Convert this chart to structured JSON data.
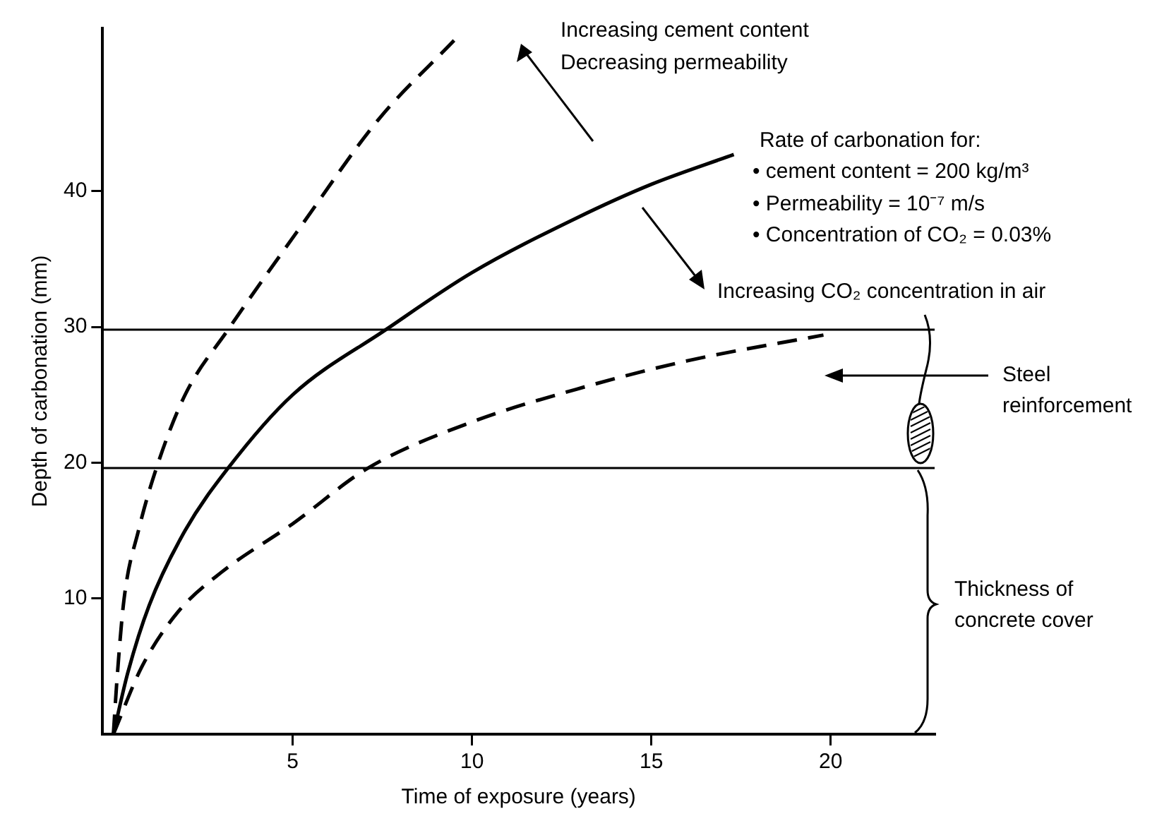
{
  "chart_data": {
    "type": "line",
    "xlabel": "Time of exposure (years)",
    "ylabel": "Depth of carbonation (mm)",
    "xlim": [
      -0.3,
      22.9
    ],
    "ylim": [
      0,
      52
    ],
    "xticks": [
      5,
      10,
      15,
      20
    ],
    "yticks": [
      10,
      20,
      30,
      40
    ],
    "grid": false,
    "legend": false,
    "marker": "none",
    "series": [
      {
        "color": "#000000",
        "line_style": "dashed",
        "x": [
          0,
          0.1,
          0.3,
          0.7,
          1.2,
          2,
          3.2,
          5.2,
          7.4,
          9.5
        ],
        "values": [
          0,
          4,
          10,
          15,
          19.6,
          25,
          29.8,
          37.3,
          45.3,
          51.1
        ]
      },
      {
        "color": "#000000",
        "line_style": "solid",
        "x": [
          0,
          0.4,
          1,
          2,
          3.2,
          5,
          7.6,
          10,
          12.9,
          15,
          17.3
        ],
        "values": [
          0,
          4.5,
          9.5,
          15,
          19.6,
          25,
          29.8,
          34,
          38,
          40.5,
          42.7
        ]
      },
      {
        "color": "#000000",
        "line_style": "dashed",
        "x": [
          0,
          0.8,
          1.8,
          3,
          5,
          7.1,
          10,
          12.9,
          16,
          19.8
        ],
        "values": [
          0,
          5,
          9,
          11.9,
          15.5,
          19.6,
          23,
          25.4,
          27.5,
          29.4
        ]
      }
    ],
    "ref_lines": [
      {
        "axis": "y",
        "value": 29.8,
        "color": "#000000"
      },
      {
        "axis": "y",
        "value": 19.6,
        "color": "#000000"
      }
    ],
    "annotations": [
      "Increasing cement content",
      "Decreasing permeability",
      "Rate of carbonation for:",
      "• cement content = 200 kg/m³",
      "• Permeability = 10⁻⁷ m/s",
      "• Concentration of CO₂ = 0.03%",
      "Increasing CO₂ concentration in air",
      "Steel",
      "reinforcement",
      "Thickness of",
      "concrete cover"
    ]
  }
}
